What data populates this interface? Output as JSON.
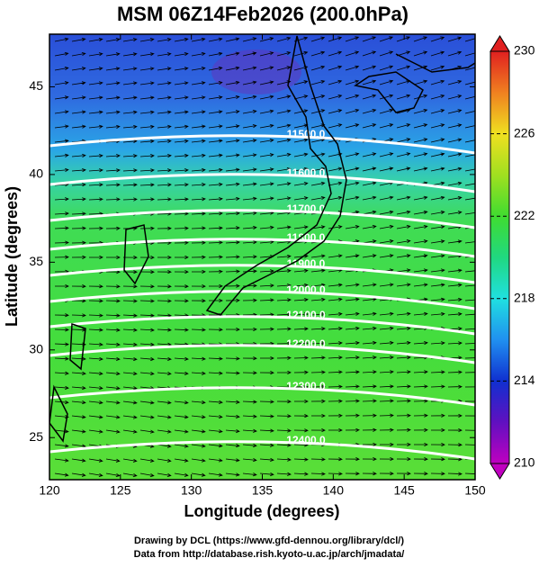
{
  "title": "MSM 06Z14Feb2026 (200.0hPa)",
  "map": {
    "xlim": [
      120,
      150
    ],
    "ylim": [
      22.6,
      48
    ],
    "x_label": "Longitude (degrees)",
    "y_label": "Latitude  (degrees)",
    "x_ticks": [
      120,
      125,
      130,
      135,
      140,
      145,
      150
    ],
    "y_ticks": [
      25,
      30,
      35,
      40,
      45
    ]
  },
  "colorbar": {
    "lim": [
      210,
      230
    ],
    "ticks": [
      210,
      214,
      218,
      222,
      226,
      230
    ]
  },
  "contour_labels": [
    "11500.0",
    "11600.0",
    "11700.0",
    "11800.0",
    "11900.0",
    "12000.0",
    "12100.0",
    "12200.0",
    "12300.0",
    "12400.0"
  ],
  "credits": [
    "Drawing by DCL (https://www.gfd-dennou.org/library/dcl/)",
    "Data from http://database.rish.kyoto-u.ac.jp/arch/jmadata/"
  ]
}
